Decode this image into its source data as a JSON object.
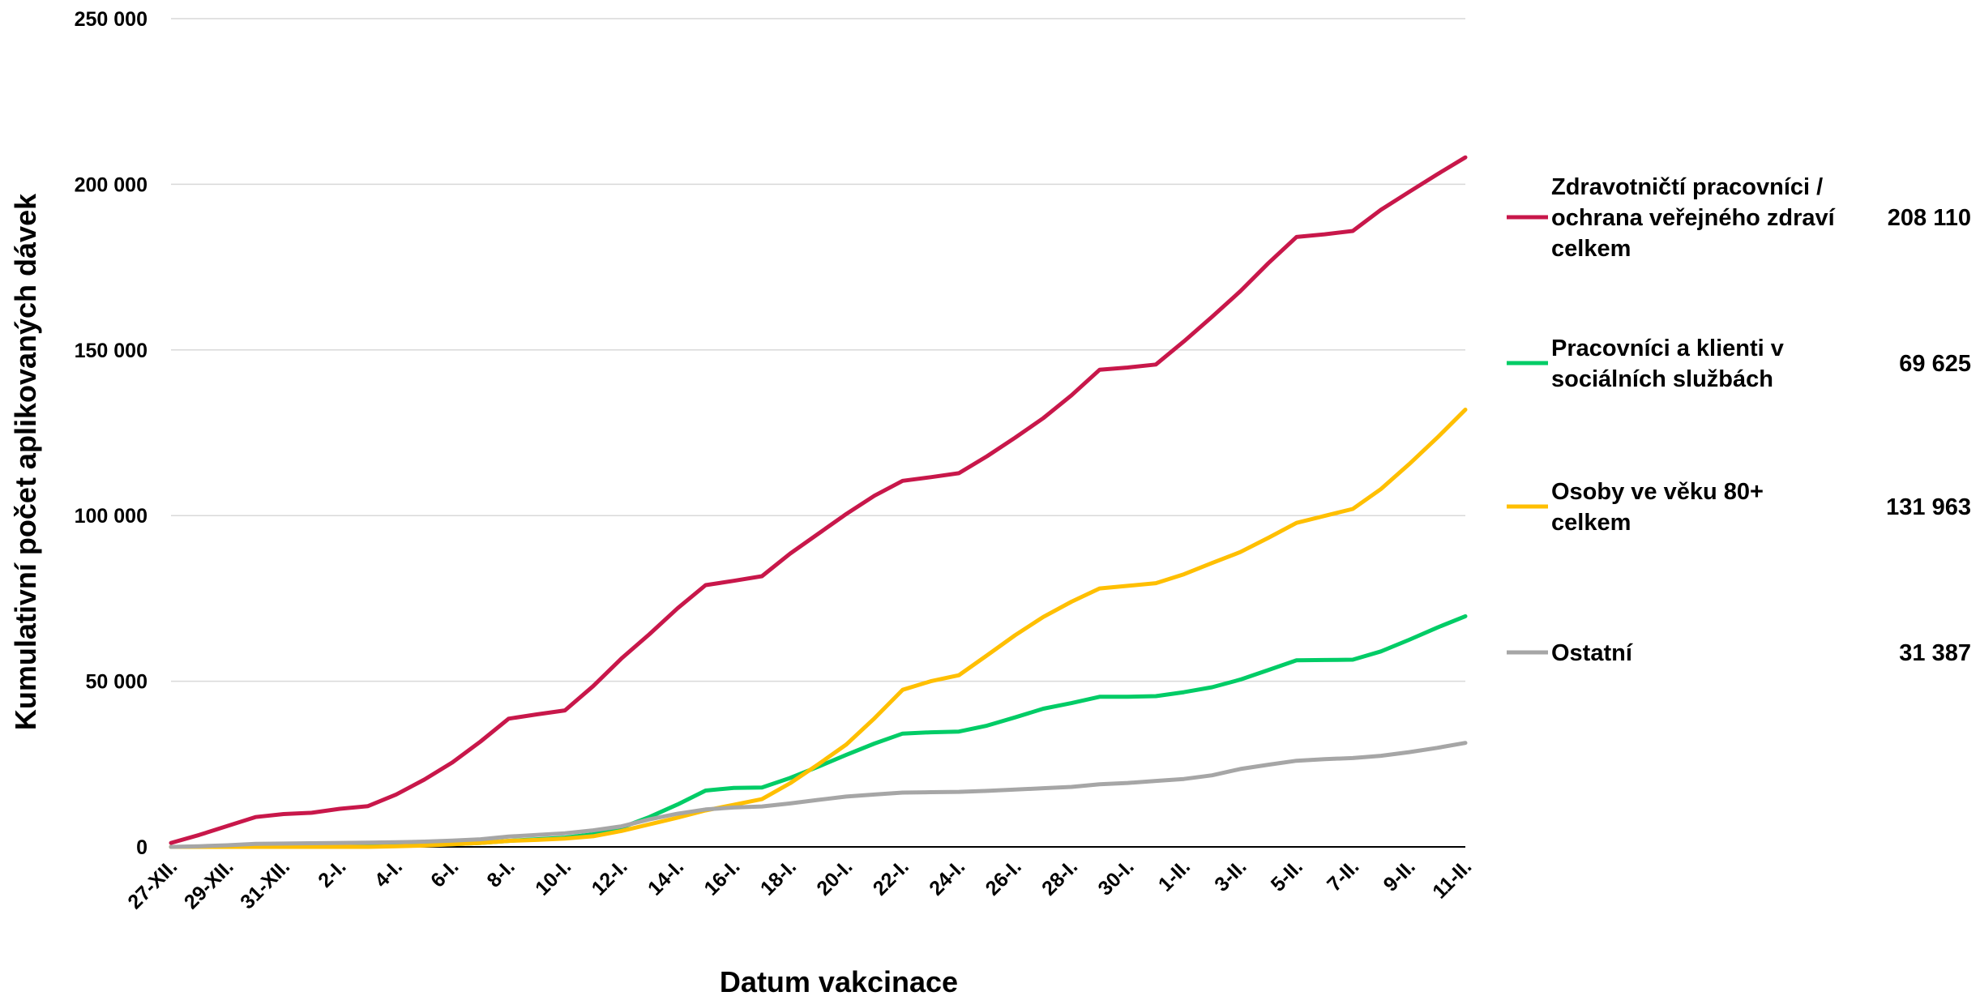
{
  "chart_data": {
    "type": "line",
    "title": "",
    "xlabel": "Datum vakcinace",
    "ylabel": "Kumulativní počet aplikovaných dávek",
    "ylim": [
      0,
      250000
    ],
    "yticks": [
      0,
      50000,
      100000,
      150000,
      200000,
      250000
    ],
    "ytick_labels": [
      "0",
      "50 000",
      "100 000",
      "150 000",
      "200 000",
      "250 000"
    ],
    "grid": true,
    "legend_position": "right",
    "categories": [
      "27-XII.",
      "28-XII.",
      "29-XII.",
      "30-XII.",
      "31-XII.",
      "1-I.",
      "2-I.",
      "3-I.",
      "4-I.",
      "5-I.",
      "6-I.",
      "7-I.",
      "8-I.",
      "9-I.",
      "10-I.",
      "11-I.",
      "12-I.",
      "13-I.",
      "14-I.",
      "15-I.",
      "16-I.",
      "17-I.",
      "18-I.",
      "19-I.",
      "20-I.",
      "21-I.",
      "22-I.",
      "23-I.",
      "24-I.",
      "25-I.",
      "26-I.",
      "27-I.",
      "28-I.",
      "29-I.",
      "30-I.",
      "31-I.",
      "1-II.",
      "2-II.",
      "3-II.",
      "4-II.",
      "5-II.",
      "6-II.",
      "7-II.",
      "8-II.",
      "9-II.",
      "10-II.",
      "11-II."
    ],
    "x_tick_labels": [
      "27-XII.",
      "29-XII.",
      "31-XII.",
      "2-I.",
      "4-I.",
      "6-I.",
      "8-I.",
      "10-I.",
      "12-I.",
      "14-I.",
      "16-I.",
      "18-I.",
      "20-I.",
      "22-I.",
      "24-I.",
      "26-I.",
      "28-I.",
      "30-I.",
      "1-II.",
      "3-II.",
      "5-II.",
      "7-II.",
      "9-II.",
      "11-II."
    ],
    "series": [
      {
        "name": "Zdravotničtí pracovníci / ochrana veřejného zdraví celkem",
        "name_lines": [
          "Zdravotničtí pracovníci /",
          "ochrana veřejného zdraví",
          "celkem"
        ],
        "total": "208 110",
        "color": "#c8174a",
        "values": [
          1200,
          3600,
          6300,
          9000,
          9900,
          10300,
          11500,
          12300,
          15800,
          20300,
          25500,
          31800,
          38700,
          40000,
          41200,
          48500,
          56800,
          64200,
          72000,
          79000,
          80300,
          81700,
          88500,
          94500,
          100500,
          106000,
          110500,
          111600,
          112800,
          117900,
          123500,
          129400,
          136300,
          144000,
          144700,
          145600,
          152600,
          160000,
          167700,
          176200,
          184100,
          184900,
          185900,
          192300,
          197700,
          203000,
          208110
        ]
      },
      {
        "name": "Pracovníci a klienti v sociálních službách",
        "name_lines": [
          "Pracovníci a klienti v",
          "sociálních službách"
        ],
        "total": "69 625",
        "color": "#00cc66",
        "values": [
          0,
          0,
          0,
          0,
          100,
          100,
          200,
          300,
          400,
          500,
          800,
          1200,
          1800,
          2300,
          2800,
          3800,
          5800,
          9000,
          12800,
          17000,
          17800,
          17900,
          20800,
          24200,
          27800,
          31200,
          34200,
          34600,
          34800,
          36600,
          39100,
          41700,
          43400,
          45300,
          45300,
          45500,
          46700,
          48200,
          50500,
          53400,
          56300,
          56400,
          56500,
          59000,
          62500,
          66200,
          69625
        ]
      },
      {
        "name": "Osoby ve věku 80+ celkem",
        "name_lines": [
          "Osoby ve věku 80+",
          "celkem"
        ],
        "total": "131 963",
        "color": "#ffbf00",
        "values": [
          0,
          0,
          0,
          0,
          0,
          0,
          0,
          0,
          200,
          400,
          800,
          1200,
          1800,
          2100,
          2500,
          3200,
          4800,
          6800,
          8800,
          11000,
          12700,
          14400,
          19200,
          24900,
          30900,
          38800,
          47400,
          50000,
          51800,
          57800,
          63900,
          69400,
          74000,
          78000,
          78800,
          79600,
          82300,
          85700,
          89000,
          93300,
          97800,
          99900,
          102000,
          108000,
          115500,
          123500,
          131963
        ]
      },
      {
        "name": "Ostatní",
        "name_lines": [
          "Ostatní"
        ],
        "total": "31 387",
        "color": "#a6a6a6",
        "values": [
          0,
          200,
          500,
          900,
          1000,
          1100,
          1200,
          1300,
          1400,
          1600,
          1900,
          2300,
          3100,
          3600,
          4100,
          5000,
          6200,
          8300,
          10000,
          11300,
          11900,
          12200,
          13100,
          14200,
          15200,
          15800,
          16400,
          16500,
          16600,
          16900,
          17300,
          17700,
          18100,
          18900,
          19300,
          19900,
          20500,
          21600,
          23500,
          24800,
          26000,
          26500,
          26800,
          27500,
          28600,
          29900,
          31387
        ]
      }
    ]
  }
}
